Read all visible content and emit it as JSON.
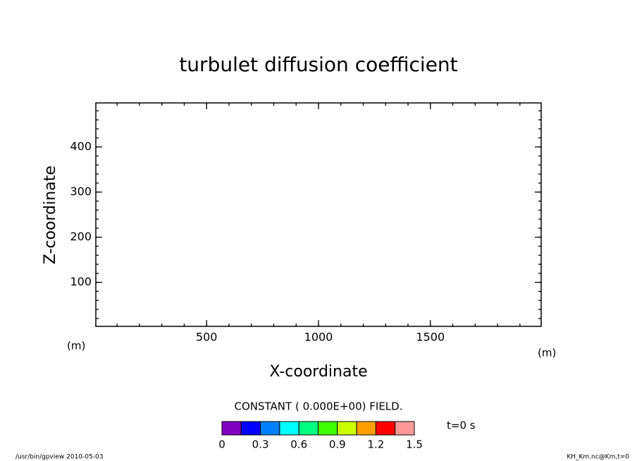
{
  "chart_data": {
    "type": "contour",
    "title": "turbulet diffusion coefficient",
    "x_label": "X-coordinate",
    "y_label": "Z-coordinate",
    "x_unit": "(m)",
    "y_unit": "(m)",
    "xlim": [
      5,
      1995
    ],
    "ylim": [
      2.5,
      497.5
    ],
    "xticks": [
      500,
      1000,
      1500
    ],
    "yticks": [
      100,
      200,
      300,
      400
    ],
    "xticks_minor": [
      100,
      200,
      300,
      400,
      500,
      600,
      700,
      800,
      900,
      1000,
      1100,
      1200,
      1300,
      1400,
      1500,
      1600,
      1700,
      1800,
      1900
    ],
    "yticks_minor": [
      20,
      40,
      60,
      80,
      100,
      120,
      140,
      160,
      180,
      200,
      220,
      240,
      260,
      280,
      300,
      320,
      340,
      360,
      380,
      400,
      420,
      440,
      460,
      480
    ],
    "annotation": "CONSTANT ( 0.000E+00) FIELD.",
    "time_label": "t=0 s",
    "colorbar": {
      "levels": [
        0,
        0.15,
        0.3,
        0.45,
        0.6,
        0.75,
        0.9,
        1.05,
        1.2,
        1.35,
        1.5
      ],
      "colors": [
        "#7f00bf",
        "#0000ff",
        "#0080ff",
        "#00ffff",
        "#00ff80",
        "#40ff00",
        "#ccff00",
        "#ffa000",
        "#ff0000",
        "#ff9999"
      ],
      "ticks": [
        0,
        0.3,
        0.6,
        0.9,
        1.2,
        1.5
      ]
    },
    "footer_left": "/usr/bin/gpview  2010-05-03",
    "footer_right": "KH_Km.nc@Km,t=0"
  }
}
